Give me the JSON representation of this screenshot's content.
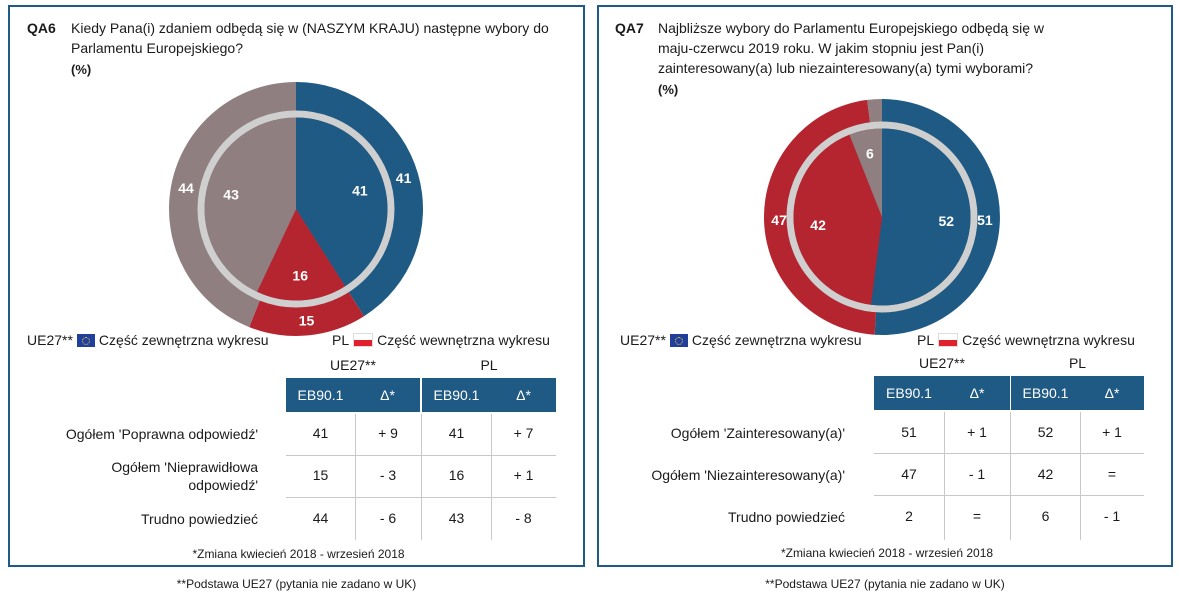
{
  "colors": {
    "blue": "#1f5a84",
    "red": "#b5252f",
    "grey": "#8f7f81",
    "ring": "#cfcfcf"
  },
  "qa6": {
    "code": "QA6",
    "question": "Kiedy Pana(i) zdaniem odbędą się w (NASZYM KRAJU) następne wybory do Parlamentu Europejskiego?",
    "unit": "(%)",
    "legend": {
      "eu_label": "UE27**",
      "eu_text": "Część zewnętrzna wykresu",
      "pl_label": "PL",
      "pl_text": "Część wewnętrzna wykresu"
    },
    "groups": [
      "UE27**",
      "PL"
    ],
    "headers": [
      "EB90.1",
      "Δ*",
      "EB90.1",
      "Δ*"
    ],
    "rows": [
      {
        "label": "Ogółem 'Poprawna odpowiedź'",
        "cells": [
          "41",
          "+ 9",
          "41",
          "+ 7"
        ]
      },
      {
        "label": "Ogółem 'Nieprawidłowa odpowiedź'",
        "cells": [
          "15",
          "- 3",
          "16",
          "+ 1"
        ]
      },
      {
        "label": "Trudno powiedzieć",
        "cells": [
          "44",
          "- 6",
          "43",
          "- 8"
        ]
      }
    ],
    "note": "*Zmiana kwiecień 2018 - wrzesień 2018"
  },
  "qa7": {
    "code": "QA7",
    "question": "Najbliższe wybory do Parlamentu Europejskiego odbędą się w maju-czerwcu 2019 roku. W jakim stopniu jest Pan(i) zainteresowany(a) lub niezainteresowany(a) tymi wyborami?",
    "unit": "(%)",
    "legend": {
      "eu_label": "UE27**",
      "eu_text": "Część zewnętrzna wykresu",
      "pl_label": "PL",
      "pl_text": "Część wewnętrzna wykresu"
    },
    "groups": [
      "UE27**",
      "PL"
    ],
    "headers": [
      "EB90.1",
      "Δ*",
      "EB90.1",
      "Δ*"
    ],
    "rows": [
      {
        "label": "Ogółem 'Zainteresowany(a)'",
        "cells": [
          "51",
          "+ 1",
          "52",
          "+ 1"
        ]
      },
      {
        "label": "Ogółem 'Niezainteresowany(a)'",
        "cells": [
          "47",
          "- 1",
          "42",
          "="
        ]
      },
      {
        "label": "Trudno powiedzieć",
        "cells": [
          "2",
          "=",
          "6",
          "- 1"
        ]
      }
    ],
    "note": "*Zmiana kwiecień 2018 - wrzesień 2018"
  },
  "footnotes": [
    "**Podstawa UE27 (pytania nie zadano w UK)",
    "**Podstawa UE27 (pytania nie zadano w UK)"
  ],
  "chart_data": [
    {
      "type": "pie",
      "title": "QA6 Kiedy Pana(i) zdaniem odbędą się w (NASZYM KRAJU) następne wybory do Parlamentu Europejskiego?",
      "categories": [
        "Ogółem 'Poprawna odpowiedź'",
        "Ogółem 'Nieprawidłowa odpowiedź'",
        "Trudno powiedzieć"
      ],
      "series": [
        {
          "name": "UE27** (część zewnętrzna)",
          "values": [
            41,
            15,
            44
          ]
        },
        {
          "name": "PL (część wewnętrzna)",
          "values": [
            41,
            16,
            43
          ]
        }
      ],
      "colors": [
        "#1f5a84",
        "#b5252f",
        "#8f7f81"
      ]
    },
    {
      "type": "pie",
      "title": "QA7 Najbliższe wybory do Parlamentu Europejskiego odbędą się w maju-czerwcu 2019 roku. W jakim stopniu jest Pan(i) zainteresowany(a) lub niezainteresowany(a) tymi wyborami?",
      "categories": [
        "Ogółem 'Zainteresowany(a)'",
        "Ogółem 'Niezainteresowany(a)'",
        "Trudno powiedzieć"
      ],
      "series": [
        {
          "name": "UE27** (część zewnętrzna)",
          "values": [
            51,
            47,
            2
          ]
        },
        {
          "name": "PL (część wewnętrzna)",
          "values": [
            52,
            42,
            6
          ]
        }
      ],
      "colors": [
        "#1f5a84",
        "#b5252f",
        "#8f7f81"
      ]
    }
  ]
}
